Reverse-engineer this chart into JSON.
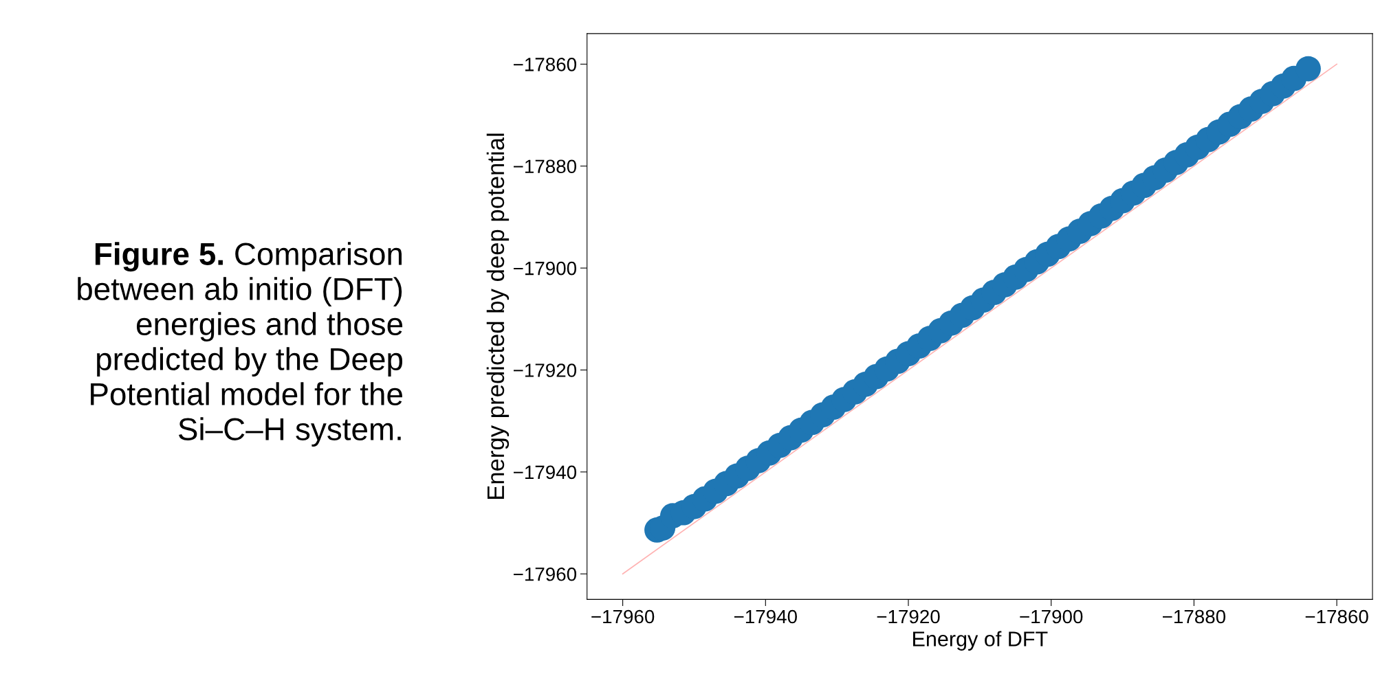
{
  "chart_data": {
    "type": "scatter",
    "xlabel": "Energy of DFT",
    "ylabel": "Energy predicted by deep potential",
    "annotations": [
      "Figure 5.",
      "Comparison between ab initio (DFT) energies and those predicted by the Deep Potential model for the Si–C–H system."
    ],
    "xlim": [
      -17965,
      -17855
    ],
    "ylim": [
      -17965,
      -17854
    ],
    "xticks": [
      -17960,
      -17940,
      -17920,
      -17900,
      -17880,
      -17860
    ],
    "yticks": [
      -17960,
      -17940,
      -17920,
      -17900,
      -17880,
      -17860
    ],
    "grid": false,
    "legend": false,
    "marker": "circle",
    "series": [
      {
        "type": "line",
        "marker": "none",
        "color": "#ffb3b3",
        "x": [
          -17960,
          -17860
        ],
        "values": [
          -17960,
          -17860
        ],
        "line_style": "solid"
      },
      {
        "color": "#1f77b4",
        "x": [
          -17955.2,
          -17954.4,
          -17953.0,
          -17951.5,
          -17950.0,
          -17948.5,
          -17947.0,
          -17945.5,
          -17944.0,
          -17942.5,
          -17941.0,
          -17939.5,
          -17938.0,
          -17936.5,
          -17935.0,
          -17933.5,
          -17932.0,
          -17930.5,
          -17929.0,
          -17927.5,
          -17926.0,
          -17924.5,
          -17923.0,
          -17921.5,
          -17920.0,
          -17918.5,
          -17917.0,
          -17915.5,
          -17914.0,
          -17912.5,
          -17911.0,
          -17909.5,
          -17908.0,
          -17906.5,
          -17905.0,
          -17903.5,
          -17902.0,
          -17900.5,
          -17899.0,
          -17897.5,
          -17896.0,
          -17894.5,
          -17893.0,
          -17891.5,
          -17890.0,
          -17888.5,
          -17887.0,
          -17885.5,
          -17884.0,
          -17882.5,
          -17881.0,
          -17879.5,
          -17878.0,
          -17876.5,
          -17875.0,
          -17873.5,
          -17872.0,
          -17870.5,
          -17869.0,
          -17867.5,
          -17866.0,
          -17864.0
        ],
        "values": [
          -17951.4,
          -17951.0,
          -17948.6,
          -17948.0,
          -17946.8,
          -17945.3,
          -17943.8,
          -17942.3,
          -17940.8,
          -17939.3,
          -17937.8,
          -17936.3,
          -17934.8,
          -17933.3,
          -17931.8,
          -17930.3,
          -17928.8,
          -17927.3,
          -17925.8,
          -17924.3,
          -17922.8,
          -17921.3,
          -17919.8,
          -17918.3,
          -17916.8,
          -17915.3,
          -17913.8,
          -17912.3,
          -17910.8,
          -17909.3,
          -17907.8,
          -17906.3,
          -17904.8,
          -17903.3,
          -17901.8,
          -17900.3,
          -17898.8,
          -17897.3,
          -17895.8,
          -17894.3,
          -17892.8,
          -17891.3,
          -17889.8,
          -17888.3,
          -17886.8,
          -17885.3,
          -17883.8,
          -17882.3,
          -17880.8,
          -17879.3,
          -17877.8,
          -17876.3,
          -17874.8,
          -17873.3,
          -17871.8,
          -17870.3,
          -17868.8,
          -17867.3,
          -17865.8,
          -17864.3,
          -17862.8,
          -17860.9
        ]
      }
    ]
  }
}
